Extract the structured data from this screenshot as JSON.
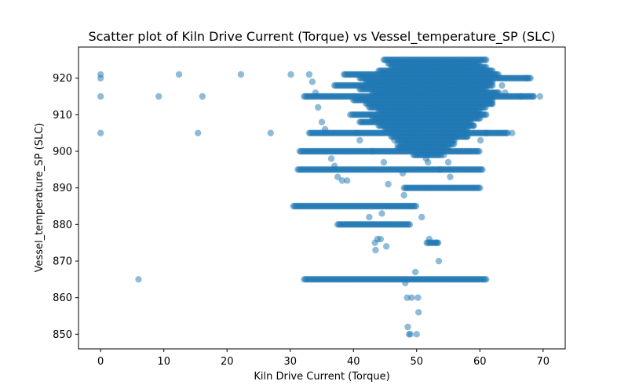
{
  "chart_data": {
    "type": "scatter",
    "title": "Scatter plot of Kiln Drive Current (Torque) vs Vessel_temperature_SP (SLC)",
    "xlabel": "Kiln Drive Current (Torque)",
    "ylabel": "Vessel_temperature_SP (SLC)",
    "xlim": [
      -3.5,
      73.5
    ],
    "ylim": [
      846,
      928.5
    ],
    "xticks": [
      0,
      10,
      20,
      30,
      40,
      50,
      60,
      70
    ],
    "yticks": [
      850,
      860,
      870,
      880,
      890,
      900,
      910,
      920
    ],
    "grid": false,
    "legend": "none",
    "series": [
      {
        "color": "#1f77b4",
        "alpha": 0.5,
        "points": [
          [
            0,
            921
          ],
          [
            0,
            920
          ],
          [
            0,
            915
          ],
          [
            0,
            905
          ],
          [
            6,
            865
          ],
          [
            9.2,
            915
          ],
          [
            12.4,
            921
          ],
          [
            15.4,
            905
          ],
          [
            16.1,
            915
          ],
          [
            22.2,
            921
          ],
          [
            26.9,
            905
          ],
          [
            30.1,
            921
          ],
          [
            33,
            921
          ],
          [
            33.5,
            919
          ],
          [
            34,
            916
          ],
          [
            34.4,
            912
          ],
          [
            35,
            908
          ],
          [
            35.5,
            906
          ],
          [
            36.5,
            898
          ],
          [
            37,
            896
          ],
          [
            37.5,
            893
          ],
          [
            38.2,
            892
          ],
          [
            39,
            892
          ],
          [
            39.5,
            910
          ],
          [
            40.5,
            905
          ],
          [
            41,
            903
          ],
          [
            42.5,
            882
          ],
          [
            43,
            900
          ],
          [
            43.4,
            875
          ],
          [
            43.8,
            876
          ],
          [
            43.5,
            873
          ],
          [
            44.3,
            876
          ],
          [
            44.5,
            883
          ],
          [
            44.8,
            897
          ],
          [
            45.2,
            874
          ],
          [
            45.5,
            891
          ],
          [
            46.5,
            903
          ],
          [
            47,
            902
          ],
          [
            47.8,
            894
          ],
          [
            48,
            888
          ],
          [
            48.2,
            864
          ],
          [
            48.5,
            860
          ],
          [
            48.6,
            852
          ],
          [
            48.8,
            850
          ],
          [
            49,
            850
          ],
          [
            49.2,
            860
          ],
          [
            49.8,
            867
          ],
          [
            50,
            850
          ],
          [
            50.2,
            860
          ],
          [
            50.3,
            856
          ],
          [
            50.8,
            882
          ],
          [
            51.5,
            898
          ],
          [
            51.8,
            897
          ],
          [
            52,
            876
          ],
          [
            53.2,
            875
          ],
          [
            53.5,
            870
          ],
          [
            53.7,
            895
          ],
          [
            54.3,
            899
          ],
          [
            55,
            897
          ],
          [
            55.3,
            893
          ],
          [
            56,
            904
          ],
          [
            57,
            910
          ],
          [
            58,
            904
          ],
          [
            58.5,
            908
          ],
          [
            59,
            907
          ],
          [
            59.5,
            920
          ],
          [
            60.1,
            903
          ],
          [
            61,
            905
          ],
          [
            61.8,
            913
          ],
          [
            62,
            916
          ],
          [
            63.5,
            918
          ],
          [
            64,
            916
          ],
          [
            65.1,
            905
          ],
          [
            66.5,
            915
          ],
          [
            67.4,
            920
          ],
          [
            68.5,
            915
          ],
          [
            69.5,
            915
          ]
        ],
        "runs": [
          {
            "y": 925,
            "x": [
              44.8,
              61
            ]
          },
          {
            "y": 924,
            "x": [
              45.5,
              60
            ]
          },
          {
            "y": 923,
            "x": [
              46,
              61
            ]
          },
          {
            "y": 922,
            "x": [
              44,
              62
            ]
          },
          {
            "y": 921,
            "x": [
              38.5,
              63
            ]
          },
          {
            "y": 920,
            "x": [
              41,
              68
            ]
          },
          {
            "y": 919,
            "x": [
              42,
              62
            ]
          },
          {
            "y": 918,
            "x": [
              37,
              62
            ]
          },
          {
            "y": 917,
            "x": [
              41,
              61
            ]
          },
          {
            "y": 916,
            "x": [
              43,
              63
            ]
          },
          {
            "y": 915,
            "x": [
              32.2,
              68.5
            ]
          },
          {
            "y": 914,
            "x": [
              40,
              62
            ]
          },
          {
            "y": 913,
            "x": [
              42,
              62
            ]
          },
          {
            "y": 912,
            "x": [
              42.5,
              61
            ]
          },
          {
            "y": 911,
            "x": [
              44,
              60
            ]
          },
          {
            "y": 910,
            "x": [
              39.8,
              61
            ]
          },
          {
            "y": 909,
            "x": [
              43,
              60
            ]
          },
          {
            "y": 908,
            "x": [
              41,
              58.5
            ]
          },
          {
            "y": 907,
            "x": [
              44,
              59
            ]
          },
          {
            "y": 906,
            "x": [
              45,
              58
            ]
          },
          {
            "y": 905,
            "x": [
              33,
              64.5
            ]
          },
          {
            "y": 904,
            "x": [
              46,
              58
            ]
          },
          {
            "y": 903,
            "x": [
              47,
              56
            ]
          },
          {
            "y": 902,
            "x": [
              47.5,
              56
            ]
          },
          {
            "y": 901,
            "x": [
              47,
              55
            ]
          },
          {
            "y": 900,
            "x": [
              31.5,
              60
            ]
          },
          {
            "y": 899,
            "x": [
              49.5,
              54
            ]
          },
          {
            "y": 895,
            "x": [
              31.2,
              60.5
            ]
          },
          {
            "y": 890,
            "x": [
              48,
              60
            ]
          },
          {
            "y": 885,
            "x": [
              30.5,
              50
            ]
          },
          {
            "y": 880,
            "x": [
              37.5,
              49
            ]
          },
          {
            "y": 875,
            "x": [
              51.6,
              53.5
            ]
          },
          {
            "y": 865,
            "x": [
              32.2,
              61
            ]
          }
        ]
      }
    ]
  }
}
